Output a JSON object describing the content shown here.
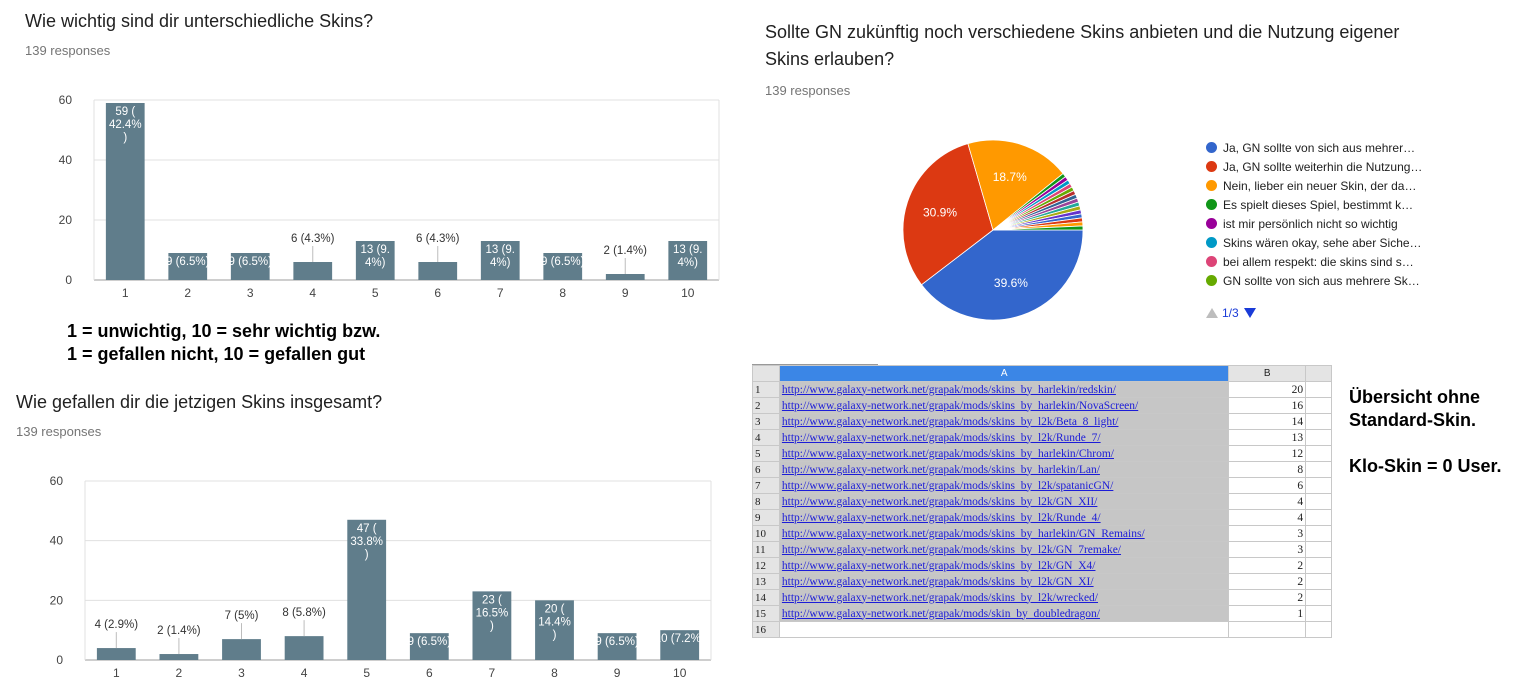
{
  "q1": {
    "title": "Wie wichtig sind dir unterschiedliche Skins?",
    "responses": "139 responses"
  },
  "q2": {
    "title": "Sollte GN zukünftig noch verschiedene Skins anbieten und die Nutzung eigener Skins erlauben?",
    "responses": "139 responses"
  },
  "q3": {
    "title": "Wie gefallen dir die jetzigen Skins insgesamt?",
    "responses": "139 responses"
  },
  "scale_note": {
    "line1": "1 = unwichtig, 10 = sehr wichtig bzw.",
    "line2": "1 = gefallen nicht, 10 = gefallen gut"
  },
  "side_note": {
    "line1": "Übersicht ohne",
    "line2": "Standard-Skin.",
    "line3": "Klo-Skin = 0 User."
  },
  "colors": {
    "bar": "#607d8b",
    "grid": "#e0e0e0",
    "pie": [
      "#3366cc",
      "#dc3912",
      "#ff9900",
      "#109618",
      "#990099",
      "#0099c6",
      "#dd4477",
      "#66aa00",
      "#b82e2e",
      "#316395",
      "#994499",
      "#22aa99",
      "#aaaa11",
      "#6633cc"
    ]
  },
  "chart_data": [
    {
      "type": "bar",
      "title": "Wie wichtig sind dir unterschiedliche Skins?",
      "categories": [
        "1",
        "2",
        "3",
        "4",
        "5",
        "6",
        "7",
        "8",
        "9",
        "10"
      ],
      "values": [
        59,
        9,
        9,
        6,
        13,
        6,
        13,
        9,
        2,
        13
      ],
      "data_labels": [
        [
          "59 (",
          "42.4%",
          ")"
        ],
        [
          "9 (6.5%)"
        ],
        [
          "9 (6.5%)"
        ],
        [
          "6 (4.3%)"
        ],
        [
          "13 (9.",
          "4%)"
        ],
        [
          "6 (4.3%)"
        ],
        [
          "13 (9.",
          "4%)"
        ],
        [
          "9 (6.5%)"
        ],
        [
          "2 (1.4%)"
        ],
        [
          "13 (9.",
          "4%)"
        ]
      ],
      "ylim": [
        0,
        60
      ],
      "yticks": [
        0,
        20,
        40,
        60
      ],
      "grid": true
    },
    {
      "type": "pie",
      "title": "Sollte GN zukünftig noch verschiedene Skins anbieten und die Nutzung eigener Skins erlauben?",
      "legend": [
        "Ja, GN sollte von sich aus mehrer…",
        "Ja, GN sollte weiterhin die Nutzung…",
        "Nein, lieber ein neuer Skin, der da…",
        "Es spielt dieses Spiel, bestimmt k…",
        "ist mir persönlich nicht so wichtig",
        "Skins wären okay, sehe aber Siche…",
        "bei allem respekt: die skins sind s…",
        "GN sollte von sich aus mehrere Sk…"
      ],
      "legend_position": "right",
      "legend_page": "1/3",
      "slice_percents": [
        39.6,
        30.9,
        18.7,
        0.72,
        0.72,
        0.72,
        0.72,
        0.72,
        0.72,
        0.72,
        0.72,
        0.72,
        0.72,
        0.72,
        0.72,
        0.72,
        0.72,
        0.72
      ],
      "slice_labels": [
        "39.6%",
        "30.9%",
        "18.7%"
      ]
    },
    {
      "type": "bar",
      "title": "Wie gefallen dir die jetzigen Skins insgesamt?",
      "categories": [
        "1",
        "2",
        "3",
        "4",
        "5",
        "6",
        "7",
        "8",
        "9",
        "10"
      ],
      "values": [
        4,
        2,
        7,
        8,
        47,
        9,
        23,
        20,
        9,
        10
      ],
      "data_labels": [
        [
          "4 (2.9%)"
        ],
        [
          "2 (1.4%)"
        ],
        [
          "7 (5%)"
        ],
        [
          "8 (5.8%)"
        ],
        [
          "47 (",
          "33.8%",
          ")"
        ],
        [
          "9 (6.5%)"
        ],
        [
          "23 (",
          "16.5%",
          ")"
        ],
        [
          "20 (",
          "14.4%",
          ")"
        ],
        [
          "9 (6.5%)"
        ],
        [
          "10 (7.2%)"
        ]
      ],
      "ylim": [
        0,
        60
      ],
      "yticks": [
        0,
        20,
        40,
        60
      ],
      "grid": true
    },
    {
      "type": "table",
      "columns": [
        "A",
        "B"
      ],
      "rows": [
        [
          "1",
          "http://www.galaxy-network.net/grapak/mods/skins_by_harlekin/redskin/",
          20
        ],
        [
          "2",
          "http://www.galaxy-network.net/grapak/mods/skins_by_harlekin/NovaScreen/",
          16
        ],
        [
          "3",
          "http://www.galaxy-network.net/grapak/mods/skins_by_l2k/Beta_8_light/",
          14
        ],
        [
          "4",
          "http://www.galaxy-network.net/grapak/mods/skins_by_l2k/Runde_7/",
          13
        ],
        [
          "5",
          "http://www.galaxy-network.net/grapak/mods/skins_by_harlekin/Chrom/",
          12
        ],
        [
          "6",
          "http://www.galaxy-network.net/grapak/mods/skins_by_harlekin/Lan/",
          8
        ],
        [
          "7",
          "http://www.galaxy-network.net/grapak/mods/skins_by_l2k/spatanicGN/",
          6
        ],
        [
          "8",
          "http://www.galaxy-network.net/grapak/mods/skins_by_l2k/GN_XII/",
          4
        ],
        [
          "9",
          "http://www.galaxy-network.net/grapak/mods/skins_by_l2k/Runde_4/",
          4
        ],
        [
          "10",
          "http://www.galaxy-network.net/grapak/mods/skins_by_harlekin/GN_Remains/",
          3
        ],
        [
          "11",
          "http://www.galaxy-network.net/grapak/mods/skins_by_l2k/GN_7remake/",
          3
        ],
        [
          "12",
          "http://www.galaxy-network.net/grapak/mods/skins_by_l2k/GN_X4/",
          2
        ],
        [
          "13",
          "http://www.galaxy-network.net/grapak/mods/skins_by_l2k/GN_XI/",
          2
        ],
        [
          "14",
          "http://www.galaxy-network.net/grapak/mods/skins_by_l2k/wrecked/",
          2
        ],
        [
          "15",
          "http://www.galaxy-network.net/grapak/mods/skin_by_doubledragon/",
          1
        ],
        [
          "16",
          "",
          null
        ]
      ]
    }
  ]
}
